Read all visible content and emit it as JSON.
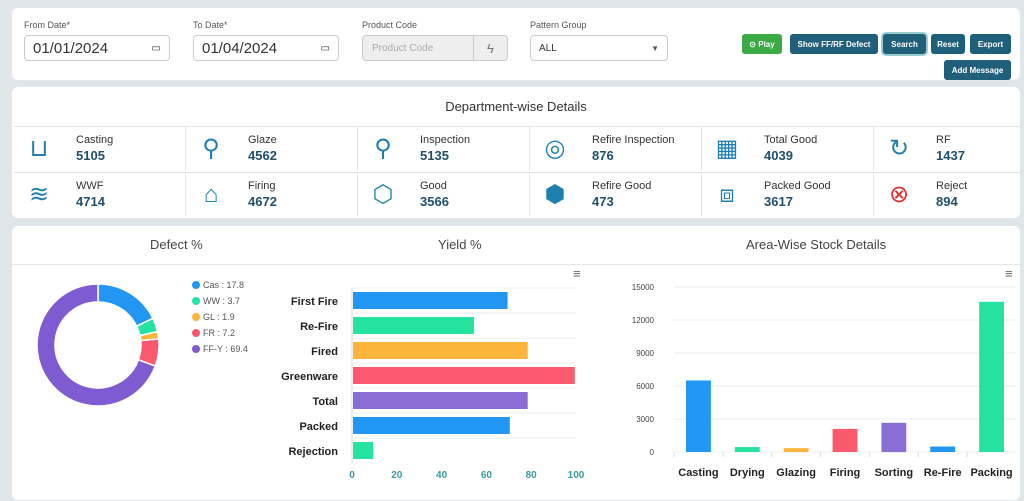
{
  "filters": {
    "from_label": "From Date*",
    "from_value": "01/01/2024",
    "to_label": "To Date*",
    "to_value": "01/04/2024",
    "product_label": "Product Code",
    "product_placeholder": "Product Code",
    "pattern_label": "Pattern Group",
    "pattern_value": "ALL"
  },
  "buttons": {
    "play": "Play",
    "show_defect": "Show FF/RF Defect",
    "search": "Search",
    "reset": "Reset",
    "export": "Export",
    "add_message": "Add Message"
  },
  "dept": {
    "title": "Department-wise Details",
    "items": [
      {
        "label": "Casting",
        "value": "5105",
        "icon": "casting-icon"
      },
      {
        "label": "Glaze",
        "value": "4562",
        "icon": "glaze-spray-icon"
      },
      {
        "label": "Inspection",
        "value": "5135",
        "icon": "magnifier-icon"
      },
      {
        "label": "Refire Inspection",
        "value": "876",
        "icon": "refire-inspection-icon"
      },
      {
        "label": "Total Good",
        "value": "4039",
        "icon": "boxes-stack-icon"
      },
      {
        "label": "RF",
        "value": "1437",
        "icon": "refresh-icon"
      },
      {
        "label": "WWF",
        "value": "4714",
        "icon": "wwf-icon"
      },
      {
        "label": "Firing",
        "value": "4672",
        "icon": "kiln-icon"
      },
      {
        "label": "Good",
        "value": "3566",
        "icon": "box-icon"
      },
      {
        "label": "Refire Good",
        "value": "473",
        "icon": "refire-box-icon"
      },
      {
        "label": "Packed Good",
        "value": "3617",
        "icon": "packed-box-icon"
      },
      {
        "label": "Reject",
        "value": "894",
        "icon": "reject-icon"
      }
    ]
  },
  "chart_data": [
    {
      "type": "pie",
      "title": "Defect %",
      "donut": true,
      "legend": "right",
      "slices": [
        {
          "label": "Cas : 17.8",
          "name": "Cas",
          "value": 17.8,
          "color": "#2196f3"
        },
        {
          "label": "WW : 3.7",
          "name": "WW",
          "value": 3.7,
          "color": "#26e29f"
        },
        {
          "label": "GL : 1.9",
          "name": "GL",
          "value": 1.9,
          "color": "#fdb43a"
        },
        {
          "label": "FR : 7.2",
          "name": "FR",
          "value": 7.2,
          "color": "#fb5a6e"
        },
        {
          "label": "FF-Y : 69.4",
          "name": "FF-Y",
          "value": 69.4,
          "color": "#7e5bd0"
        }
      ]
    },
    {
      "type": "bar",
      "orientation": "horizontal",
      "title": "Yield %",
      "xlim": [
        0,
        100
      ],
      "xticks": [
        "0",
        "20",
        "40",
        "60",
        "80",
        "100"
      ],
      "categories": [
        "First Fire",
        "Re-Fire",
        "Fired",
        "Greenware",
        "Total",
        "Packed",
        "Rejection"
      ],
      "values": [
        69,
        54,
        78,
        99,
        78,
        70,
        9
      ],
      "colors": [
        "#2196f3",
        "#26e29f",
        "#fdb43a",
        "#fb5a6e",
        "#8a6ed6",
        "#2196f3",
        "#26e29f"
      ]
    },
    {
      "type": "bar",
      "title": "Area-Wise Stock Details",
      "ylim": [
        0,
        15000
      ],
      "yticks": [
        "0",
        "3000",
        "6000",
        "9000",
        "12000",
        "15000"
      ],
      "categories": [
        "Casting",
        "Drying",
        "Glazing",
        "Firing",
        "Sorting",
        "Re-Fire",
        "Packing"
      ],
      "values": [
        6500,
        450,
        350,
        2100,
        2650,
        500,
        13650
      ],
      "colors": [
        "#2196f3",
        "#26e29f",
        "#fdb43a",
        "#fb5a6e",
        "#8a6ed6",
        "#2196f3",
        "#26e29f"
      ]
    }
  ]
}
